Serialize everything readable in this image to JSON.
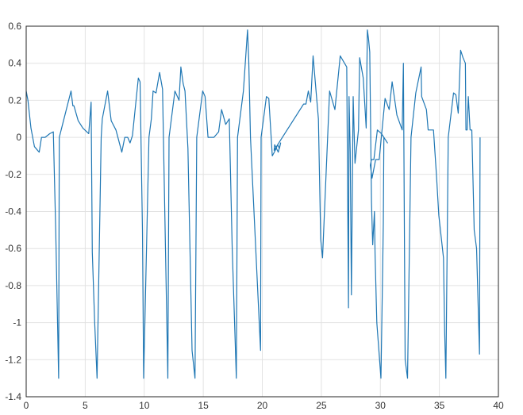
{
  "chart_data": {
    "type": "line",
    "title": "",
    "xlabel": "",
    "ylabel": "",
    "xlim": [
      0,
      40
    ],
    "ylim": [
      -1.4,
      0.6
    ],
    "xticks": [
      0,
      5,
      10,
      15,
      20,
      25,
      30,
      35,
      40
    ],
    "xtick_labels": [
      "0",
      "5",
      "10",
      "15",
      "20",
      "25",
      "30",
      "35",
      "40"
    ],
    "yticks": [
      0.6,
      0.4,
      0.2,
      0,
      -0.2,
      -0.4,
      -0.6,
      -0.8,
      -1,
      -1.2,
      -1.4
    ],
    "ytick_labels": [
      "0.6",
      "0.4",
      "0.2",
      "0",
      "-0.2",
      "-0.4",
      "-0.6",
      "-0.8",
      "-1",
      "-1.2",
      "-1.4"
    ],
    "grid": true,
    "series": [
      {
        "color": "#1f77b4",
        "x": [
          0,
          0.15,
          0.4,
          0.7,
          1.1,
          1.3,
          1.6,
          2.0,
          2.3,
          2.5,
          2.75,
          2.8,
          3.2,
          3.8,
          3.95,
          4.05,
          4.4,
          4.8,
          5.3,
          5.5,
          5.6,
          5.8,
          6.0,
          6.35,
          6.45,
          6.9,
          7.2,
          7.6,
          8.1,
          8.35,
          8.6,
          8.8,
          9.0,
          9.5,
          9.65,
          9.85,
          9.95,
          10.4,
          10.6,
          10.75,
          11.0,
          11.3,
          11.55,
          12.0,
          12.1,
          12.6,
          12.95,
          13.1,
          13.3,
          13.45,
          13.7,
          14.05,
          14.3,
          14.45,
          14.95,
          15.15,
          15.4,
          15.9,
          16.3,
          16.55,
          16.9,
          17.2,
          17.45,
          17.8,
          17.9,
          18.4,
          18.75,
          18.85,
          19.0,
          19.85,
          19.9,
          20.35,
          20.55,
          20.85,
          21.1,
          21.3,
          21.45,
          21.55,
          21.35,
          21.05,
          21.0,
          23.5,
          23.7,
          23.9,
          24.1,
          24.3,
          24.75,
          24.95,
          25.1,
          25.7,
          26.15,
          26.6,
          27.15,
          27.3,
          27.35,
          27.45,
          27.55,
          27.7,
          27.85,
          28.15,
          28.25,
          28.55,
          28.8,
          28.9,
          29.0,
          29.1,
          29.25,
          29.35,
          29.5,
          29.55,
          29.7,
          30.05,
          30.2,
          30.25,
          30.3,
          30.6,
          30.1,
          29.75,
          29.45,
          29.25,
          29.15,
          29.3,
          29.6,
          29.9,
          30.4,
          30.75,
          31.0,
          31.4,
          31.85,
          31.95,
          32.1,
          32.3,
          32.6,
          33.0,
          33.45,
          33.5,
          33.9,
          34.05,
          34.5,
          34.75,
          34.95,
          35.35,
          35.45,
          35.55,
          35.75,
          36.2,
          36.4,
          36.6,
          36.8,
          37.0,
          37.2,
          37.25,
          37.35,
          37.45,
          37.6,
          37.75,
          37.95,
          38.15,
          38.4,
          38.45
        ],
        "y": [
          0.25,
          0.2,
          0.05,
          -0.05,
          -0.08,
          0,
          0,
          0.02,
          0.03,
          -0.5,
          -1.3,
          0,
          0.1,
          0.25,
          0.17,
          0.17,
          0.09,
          0.05,
          0.02,
          0.19,
          -0.62,
          -1.0,
          -1.3,
          0,
          0.1,
          0.25,
          0.09,
          0.04,
          -0.08,
          0,
          0,
          -0.03,
          0.01,
          0.32,
          0.3,
          -0.5,
          -1.3,
          0,
          0.1,
          0.25,
          0.24,
          0.35,
          0.26,
          -1.3,
          0,
          0.25,
          0.2,
          0.38,
          0.29,
          0.25,
          -0.06,
          -1.15,
          -1.3,
          0,
          0.25,
          0.22,
          0,
          0,
          0.03,
          0.15,
          0.07,
          0.1,
          -0.6,
          -1.3,
          0,
          0.25,
          0.58,
          0.42,
          0,
          -1.15,
          0,
          0.22,
          0.21,
          -0.1,
          -0.07,
          -0.04,
          -0.06,
          -0.03,
          -0.08,
          -0.04,
          -0.07,
          0.18,
          0.18,
          0.25,
          0.19,
          0.44,
          0.1,
          -0.55,
          -0.65,
          0.25,
          0.15,
          0.44,
          0.38,
          -0.92,
          0.22,
          -0.08,
          -0.85,
          0.22,
          -0.14,
          0.04,
          0.43,
          0.32,
          0.05,
          0.58,
          0.53,
          0.46,
          -0.35,
          -0.58,
          -0.4,
          -0.63,
          -1.0,
          -1.3,
          -0.7,
          -0.46,
          0,
          -0.03,
          0.02,
          0.04,
          -0.12,
          -0.12,
          -0.15,
          -0.22,
          -0.12,
          -0.12,
          0.21,
          0.15,
          0.3,
          0.12,
          0.04,
          0.4,
          -1.2,
          -1.3,
          0,
          0.24,
          0.38,
          0.22,
          0.15,
          0.04,
          0.04,
          -0.2,
          -0.42,
          -0.65,
          -1.05,
          -1.3,
          0,
          0.24,
          0.23,
          0.13,
          0.47,
          0.43,
          0.4,
          0.04,
          0.04,
          0.22,
          0.04,
          0.04,
          -0.5,
          -0.6,
          -1.17,
          0
        ]
      }
    ]
  }
}
